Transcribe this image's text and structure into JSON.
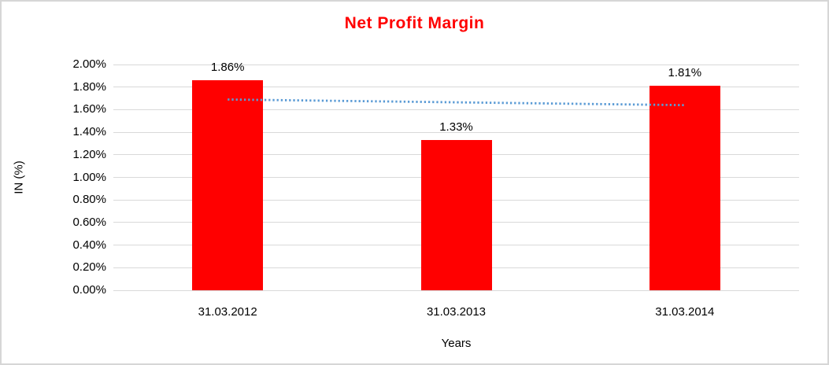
{
  "page": {
    "background_color": "#FFFFFF",
    "border_color": "#D6D6D6"
  },
  "chart_data": {
    "type": "bar",
    "title": "Net Profit Margin",
    "title_color": "#FF0000",
    "xlabel": "Years",
    "ylabel": "IN (%)",
    "categories": [
      "31.03.2012",
      "31.03.2013",
      "31.03.2014"
    ],
    "values": [
      1.86,
      1.33,
      1.81
    ],
    "data_labels": [
      "1.86%",
      "1.33%",
      "1.81%"
    ],
    "bar_color": "#FF0000",
    "ylim": [
      0,
      2.0
    ],
    "ytick_values": [
      0,
      0.2,
      0.4,
      0.6,
      0.8,
      1.0,
      1.2,
      1.4,
      1.6,
      1.8,
      2.0
    ],
    "ytick_labels": [
      "0.00%",
      "0.20%",
      "0.40%",
      "0.60%",
      "0.80%",
      "1.00%",
      "1.20%",
      "1.40%",
      "1.60%",
      "1.80%",
      "2.00%"
    ],
    "grid": true,
    "gridline_color": "#D9D9D9",
    "legend": "none",
    "text_color": "#000000",
    "trendline": {
      "type": "linear",
      "style": "dotted",
      "color": "#5B9BD5",
      "start_value": 1.69,
      "end_value": 1.64
    }
  }
}
